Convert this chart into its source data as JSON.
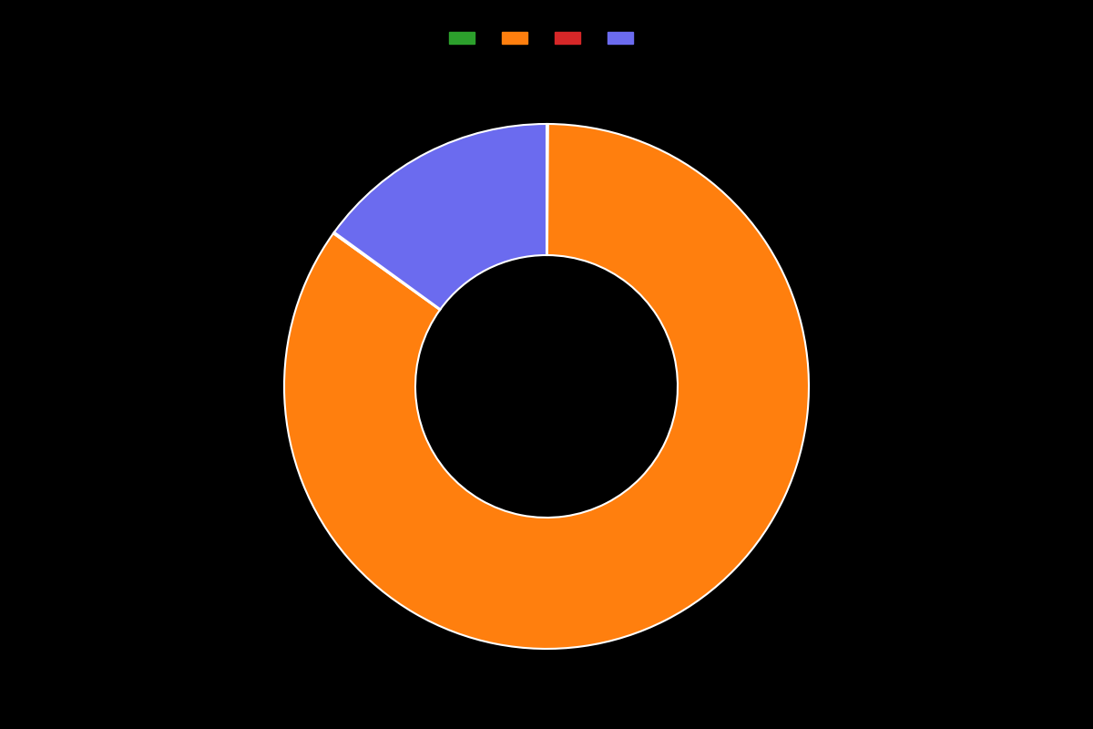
{
  "values": [
    0.1,
    84.8,
    0.1,
    15.0
  ],
  "colors": [
    "#2ca02c",
    "#ff7f0e",
    "#d62728",
    "#6b6bef"
  ],
  "labels": [
    "",
    "",
    "",
    ""
  ],
  "legend_colors": [
    "#2ca02c",
    "#ff7f0e",
    "#d62728",
    "#6b6bef"
  ],
  "background_color": "#000000",
  "wedge_edge_color": "#ffffff",
  "donut_hole": 0.5,
  "startangle": 90
}
